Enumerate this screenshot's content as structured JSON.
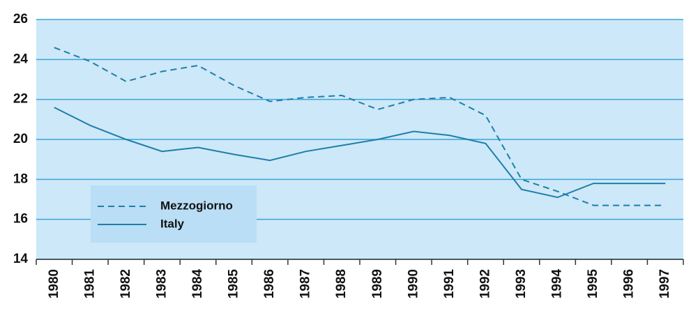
{
  "chart_data": {
    "type": "line",
    "categories": [
      "1980",
      "1981",
      "1982",
      "1983",
      "1984",
      "1985",
      "1986",
      "1987",
      "1988",
      "1989",
      "1990",
      "1991",
      "1992",
      "1993",
      "1994",
      "1995",
      "1996",
      "1997"
    ],
    "series": [
      {
        "name": "Mezzogiorno",
        "color": "#1d7fa8",
        "style": "dashed",
        "values": [
          24.6,
          23.9,
          22.9,
          23.4,
          23.7,
          22.7,
          21.9,
          22.1,
          22.2,
          21.5,
          22.0,
          22.1,
          21.2,
          18.0,
          17.4,
          16.7,
          16.7,
          16.7
        ]
      },
      {
        "name": "Italy",
        "color": "#1d7fa8",
        "style": "solid",
        "values": [
          21.6,
          20.7,
          20.0,
          19.4,
          19.6,
          19.25,
          18.95,
          19.4,
          19.7,
          20.0,
          20.4,
          20.2,
          19.8,
          17.5,
          17.1,
          17.8,
          17.8,
          17.8
        ]
      }
    ],
    "ylim": [
      14,
      26
    ],
    "yticks": [
      14,
      16,
      18,
      20,
      22,
      24,
      26
    ],
    "grid": true,
    "legend": "lower left",
    "background": "#cde8f8",
    "grid_color": "#3aa3d8"
  }
}
